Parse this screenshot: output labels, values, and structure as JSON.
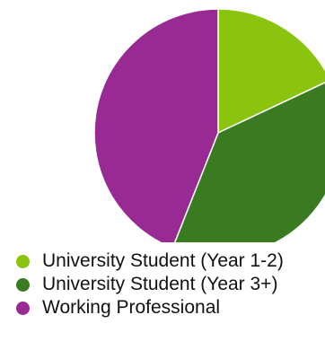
{
  "chart_data": {
    "type": "pie",
    "categories": [
      "University Student (Year 1-2)",
      "University Student (Year 3+)",
      "Working Professional"
    ],
    "values": [
      18,
      38,
      44
    ],
    "colors": [
      "#8ac40e",
      "#3a7a21",
      "#9a2a93"
    ],
    "title": "",
    "legend_position": "bottom-left",
    "start_angle": "12 o'clock, clockwise"
  }
}
